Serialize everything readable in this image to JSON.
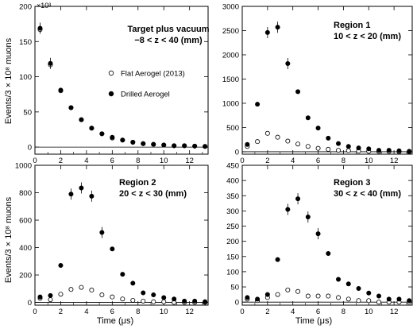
{
  "figure": {
    "ylabel": "Events/3 × 10⁸ muons",
    "xlabel": "Time (μs)"
  },
  "chart_data": [
    {
      "type": "scatter",
      "panel": "top-left",
      "title": "Target plus vacuum",
      "subtitle": "−8 < z < 40 (mm)",
      "multiplier": "×10³",
      "xlim": [
        0,
        13.5
      ],
      "ylim": [
        -10,
        200
      ],
      "xticks": [
        0,
        2,
        4,
        6,
        8,
        10,
        12
      ],
      "yticks": [
        0,
        50,
        100,
        150,
        200
      ],
      "legend_position": "middle-left",
      "x": [
        0.4,
        1.2,
        2.0,
        2.8,
        3.6,
        4.4,
        5.2,
        6.0,
        6.8,
        7.6,
        8.4,
        9.2,
        10.0,
        10.8,
        11.6,
        12.4,
        13.2
      ],
      "series": [
        {
          "name": "Flat Aerogel (2013)",
          "marker": "open-circle",
          "values": [
            167,
            117,
            80,
            56,
            39,
            27,
            19,
            13,
            10,
            7,
            5,
            4,
            3,
            2,
            2,
            1.5,
            1
          ]
        },
        {
          "name": "Drilled Aerogel",
          "marker": "filled-circle",
          "values": [
            169,
            119,
            81,
            56,
            39,
            27,
            19,
            14,
            10,
            7,
            5,
            4,
            3,
            2,
            2,
            1.5,
            1
          ]
        }
      ]
    },
    {
      "type": "scatter",
      "panel": "top-right",
      "title": "Region 1",
      "subtitle": "10 < z < 20 (mm)",
      "xlim": [
        0,
        13.5
      ],
      "ylim": [
        -50,
        3000
      ],
      "xticks": [
        0,
        2,
        4,
        6,
        8,
        10,
        12
      ],
      "yticks": [
        0,
        500,
        1000,
        1500,
        2000,
        2500,
        3000
      ],
      "x": [
        0.4,
        1.2,
        2.0,
        2.8,
        3.6,
        4.4,
        5.2,
        6.0,
        6.8,
        7.6,
        8.4,
        9.2,
        10.0,
        10.8,
        11.6,
        12.4,
        13.2
      ],
      "series": [
        {
          "name": "Flat Aerogel (2013)",
          "marker": "open-circle",
          "values": [
            110,
            210,
            380,
            300,
            220,
            160,
            110,
            70,
            50,
            30,
            25,
            15,
            10,
            5,
            5,
            0,
            0
          ]
        },
        {
          "name": "Drilled Aerogel",
          "marker": "filled-circle",
          "values": [
            150,
            980,
            2460,
            2570,
            1820,
            1240,
            700,
            490,
            280,
            170,
            110,
            80,
            60,
            30,
            30,
            20,
            10
          ]
        }
      ]
    },
    {
      "type": "scatter",
      "panel": "bottom-left",
      "title": "Region 2",
      "subtitle": "20 < z < 30 (mm)",
      "xlim": [
        0,
        13.5
      ],
      "ylim": [
        -20,
        1000
      ],
      "xticks": [
        0,
        2,
        4,
        6,
        8,
        10,
        12
      ],
      "yticks": [
        0,
        200,
        400,
        600,
        800,
        1000
      ],
      "x": [
        0.4,
        1.2,
        2.0,
        2.8,
        3.6,
        4.4,
        5.2,
        6.0,
        6.8,
        7.6,
        8.4,
        9.2,
        10.0,
        10.8,
        11.6,
        12.4,
        13.2
      ],
      "series": [
        {
          "name": "Flat Aerogel (2013)",
          "marker": "open-circle",
          "values": [
            30,
            20,
            60,
            95,
            110,
            90,
            55,
            40,
            25,
            15,
            10,
            5,
            5,
            0,
            0,
            0,
            0
          ]
        },
        {
          "name": "Drilled Aerogel",
          "marker": "filled-circle",
          "values": [
            40,
            50,
            270,
            790,
            835,
            775,
            510,
            390,
            205,
            140,
            70,
            55,
            35,
            25,
            10,
            10,
            5
          ]
        }
      ]
    },
    {
      "type": "scatter",
      "panel": "bottom-right",
      "title": "Region 3",
      "subtitle": "30 < z < 40 (mm)",
      "xlim": [
        0,
        13.5
      ],
      "ylim": [
        -10,
        450
      ],
      "xticks": [
        0,
        2,
        4,
        6,
        8,
        10,
        12
      ],
      "yticks": [
        0,
        50,
        100,
        150,
        200,
        250,
        300,
        350,
        400,
        450
      ],
      "x": [
        0.4,
        1.2,
        2.0,
        2.8,
        3.6,
        4.4,
        5.2,
        6.0,
        6.8,
        7.6,
        8.4,
        9.2,
        10.0,
        10.8,
        11.6,
        12.4,
        13.2
      ],
      "series": [
        {
          "name": "Flat Aerogel (2013)",
          "marker": "open-circle",
          "values": [
            10,
            5,
            15,
            25,
            40,
            35,
            20,
            20,
            20,
            15,
            10,
            5,
            5,
            0,
            0,
            0,
            0
          ]
        },
        {
          "name": "Drilled Aerogel",
          "marker": "filled-circle",
          "values": [
            15,
            10,
            25,
            140,
            305,
            340,
            280,
            225,
            160,
            75,
            60,
            45,
            30,
            20,
            10,
            10,
            5
          ]
        }
      ]
    }
  ]
}
